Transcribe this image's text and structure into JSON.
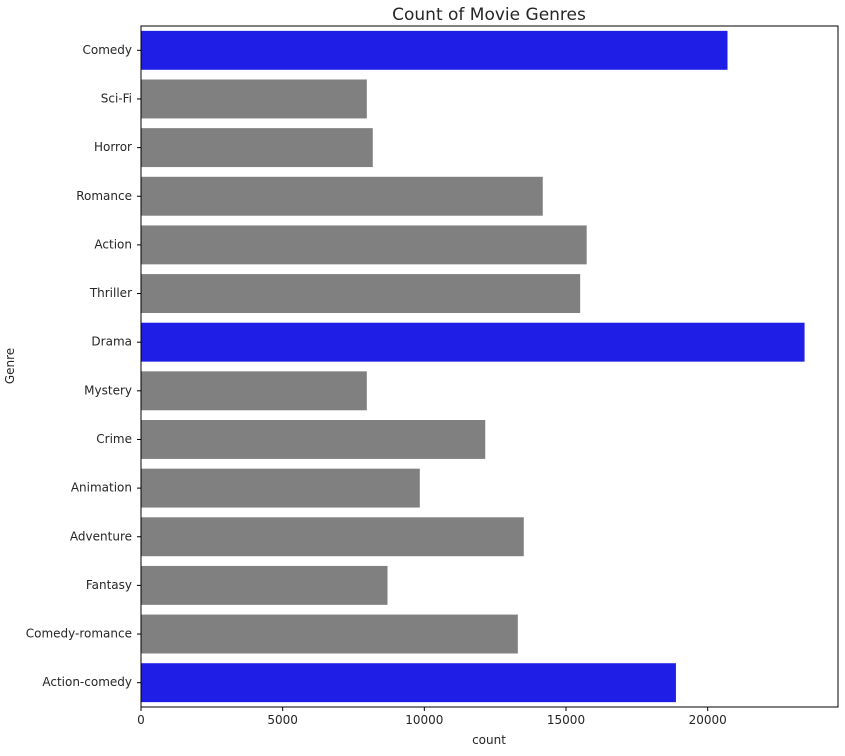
{
  "chart_data": {
    "type": "bar",
    "orientation": "horizontal",
    "title": "Count of Movie Genres",
    "xlabel": "count",
    "ylabel": "Genre",
    "categories": [
      "Comedy",
      "Sci-Fi",
      "Horror",
      "Romance",
      "Action",
      "Thriller",
      "Drama",
      "Mystery",
      "Crime",
      "Animation",
      "Adventure",
      "Fantasy",
      "Comedy-romance",
      "Action-comedy"
    ],
    "values": [
      20700,
      7970,
      8180,
      14180,
      15730,
      15500,
      23420,
      7970,
      12150,
      9840,
      13510,
      8700,
      13300,
      18880
    ],
    "xlim": [
      0,
      24600
    ],
    "xticks": [
      0,
      5000,
      10000,
      15000,
      20000
    ],
    "highlight_categories": [
      "Comedy",
      "Drama",
      "Action-comedy"
    ],
    "colors": {
      "highlight": "#1e1ee6",
      "default": "#808080"
    },
    "grid": false,
    "legend": "none"
  }
}
